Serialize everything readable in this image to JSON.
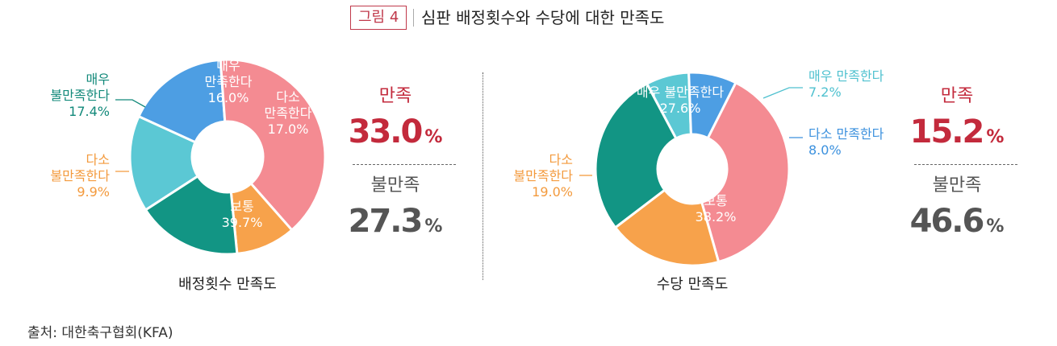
{
  "figure": {
    "badge": "그림 4",
    "title": "심판 배정횟수와 수당에 대한 만족도"
  },
  "source": "출처: 대한축구협회(KFA)",
  "chart_data": [
    {
      "type": "pie",
      "title": "배정횟수 만족도",
      "unit": "%",
      "slices": [
        {
          "label": [
            "매우",
            "만족한다"
          ],
          "value": 16.0,
          "display": "16.0%",
          "color": "#5bc8d4",
          "label_inside": true
        },
        {
          "label": [
            "다소",
            "만족한다"
          ],
          "value": 17.0,
          "display": "17.0%",
          "color": "#4d9ee3",
          "label_inside": true
        },
        {
          "label": [
            "보통"
          ],
          "value": 39.7,
          "display": "39.7%",
          "color": "#f48b92",
          "label_inside": true
        },
        {
          "label": [
            "다소",
            "불만족한다"
          ],
          "value": 9.9,
          "display": "9.9%",
          "color": "#f7a24b",
          "label_inside": false
        },
        {
          "label": [
            "매우",
            "불만족한다"
          ],
          "value": 17.4,
          "display": "17.4%",
          "color": "#129584",
          "label_inside": false
        }
      ],
      "summary": {
        "satisfied": {
          "label": "만족",
          "value": "33.0",
          "unit": "%",
          "color": "#c32a3c"
        },
        "dissatisfied": {
          "label": "불만족",
          "value": "27.3",
          "unit": "%",
          "color": "#555555"
        }
      }
    },
    {
      "type": "pie",
      "title": "수당 만족도",
      "unit": "%",
      "slices": [
        {
          "label": [
            "매우 만족한다"
          ],
          "value": 7.2,
          "display": "7.2%",
          "color": "#5bc8d4",
          "label_inside": false
        },
        {
          "label": [
            "다소 만족한다"
          ],
          "value": 8.0,
          "display": "8.0%",
          "color": "#4d9ee3",
          "label_inside": false
        },
        {
          "label": [
            "보통"
          ],
          "value": 38.2,
          "display": "38.2%",
          "color": "#f48b92",
          "label_inside": true
        },
        {
          "label": [
            "다소",
            "불만족한다"
          ],
          "value": 19.0,
          "display": "19.0%",
          "color": "#f7a24b",
          "label_inside": false
        },
        {
          "label": [
            "매우 불만족한다"
          ],
          "value": 27.6,
          "display": "27.6%",
          "color": "#129584",
          "label_inside": true
        }
      ],
      "summary": {
        "satisfied": {
          "label": "만족",
          "value": "15.2",
          "unit": "%",
          "color": "#c32a3c"
        },
        "dissatisfied": {
          "label": "불만족",
          "value": "46.6",
          "unit": "%",
          "color": "#555555"
        }
      }
    }
  ]
}
